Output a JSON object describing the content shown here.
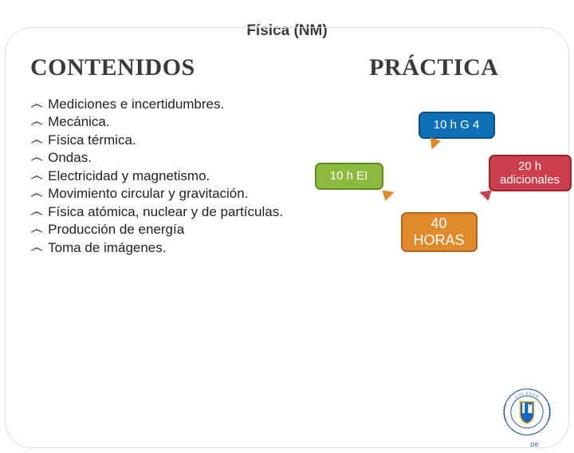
{
  "title": "Física (NM)",
  "left": {
    "heading": "CONTENIDOS",
    "bullet_glyph": "෴",
    "items": [
      "Mediciones e incertidumbres.",
      "Mecánica.",
      "Física térmica.",
      "Ondas.",
      "Electricidad y magnetismo.",
      "Movimiento circular y gravitación.",
      "Física atómica, nuclear y de partículas.",
      "Producción de energía",
      "Toma de imágenes."
    ]
  },
  "right": {
    "heading": "PRÁCTICA",
    "boxes": {
      "g4": {
        "text": "10 h G 4",
        "bg": "#0f6fb7",
        "border": "#0b4f82"
      },
      "ei": {
        "text": "10 h EI",
        "bg": "#8cba3f",
        "border": "#5f8a1f"
      },
      "extra": {
        "text": "20 h adicionales",
        "bg": "#cb3e4b",
        "border": "#9a232f"
      },
      "horas": {
        "text": "40 HORAS",
        "bg": "#e08a2c",
        "border": "#b3661a"
      }
    },
    "arrow_colors": {
      "g4": "#e08a2c",
      "ei": "#e08a2c",
      "extra": "#cb3e4b"
    }
  },
  "logo": {
    "ring_color": "#134a8e",
    "shield_fill": "#1b66b3",
    "shield_stroke": "#e4b23a",
    "top_text": "COLEGIO",
    "side_text_l": "VIRGEN",
    "side_text_r": "EUROPA",
    "bottom_text": "DE"
  },
  "colors": {
    "text": "#3a3a3a",
    "frame_border": "#d9dde2",
    "background": "#ffffff"
  }
}
